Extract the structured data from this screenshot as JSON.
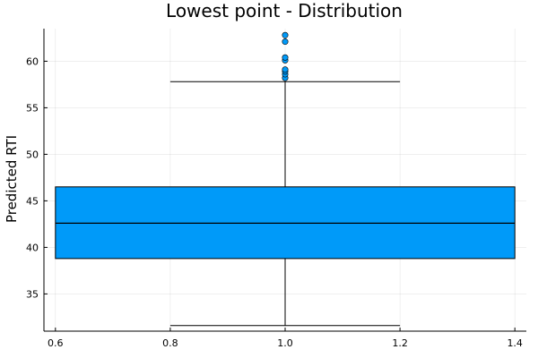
{
  "chart_data": {
    "type": "box",
    "title": "Lowest point - Distribution",
    "xlabel": "",
    "ylabel": "Predicted RTI",
    "xlim": [
      0.58,
      1.42
    ],
    "ylim": [
      31,
      63.5
    ],
    "xticks": [
      0.6,
      0.8,
      1.0,
      1.2,
      1.4
    ],
    "xtick_labels": [
      "0.6",
      "0.8",
      "1.0",
      "1.2",
      "1.4"
    ],
    "yticks": [
      35,
      40,
      45,
      50,
      55,
      60
    ],
    "ytick_labels": [
      "35",
      "40",
      "45",
      "50",
      "55",
      "60"
    ],
    "grid": true,
    "legend": "none",
    "box": {
      "x": 1.0,
      "box_left": 0.6,
      "box_right": 1.4,
      "whisker_cap_left": 0.8,
      "whisker_cap_right": 1.2,
      "min": 31.6,
      "q1": 38.8,
      "median": 42.6,
      "q3": 46.5,
      "max": 57.8,
      "outliers": [
        58.2,
        58.6,
        58.9,
        59.1,
        60.1,
        60.4,
        62.1,
        62.8
      ]
    },
    "colors": {
      "box_fill": "#009af9",
      "outline": "#000000"
    }
  }
}
